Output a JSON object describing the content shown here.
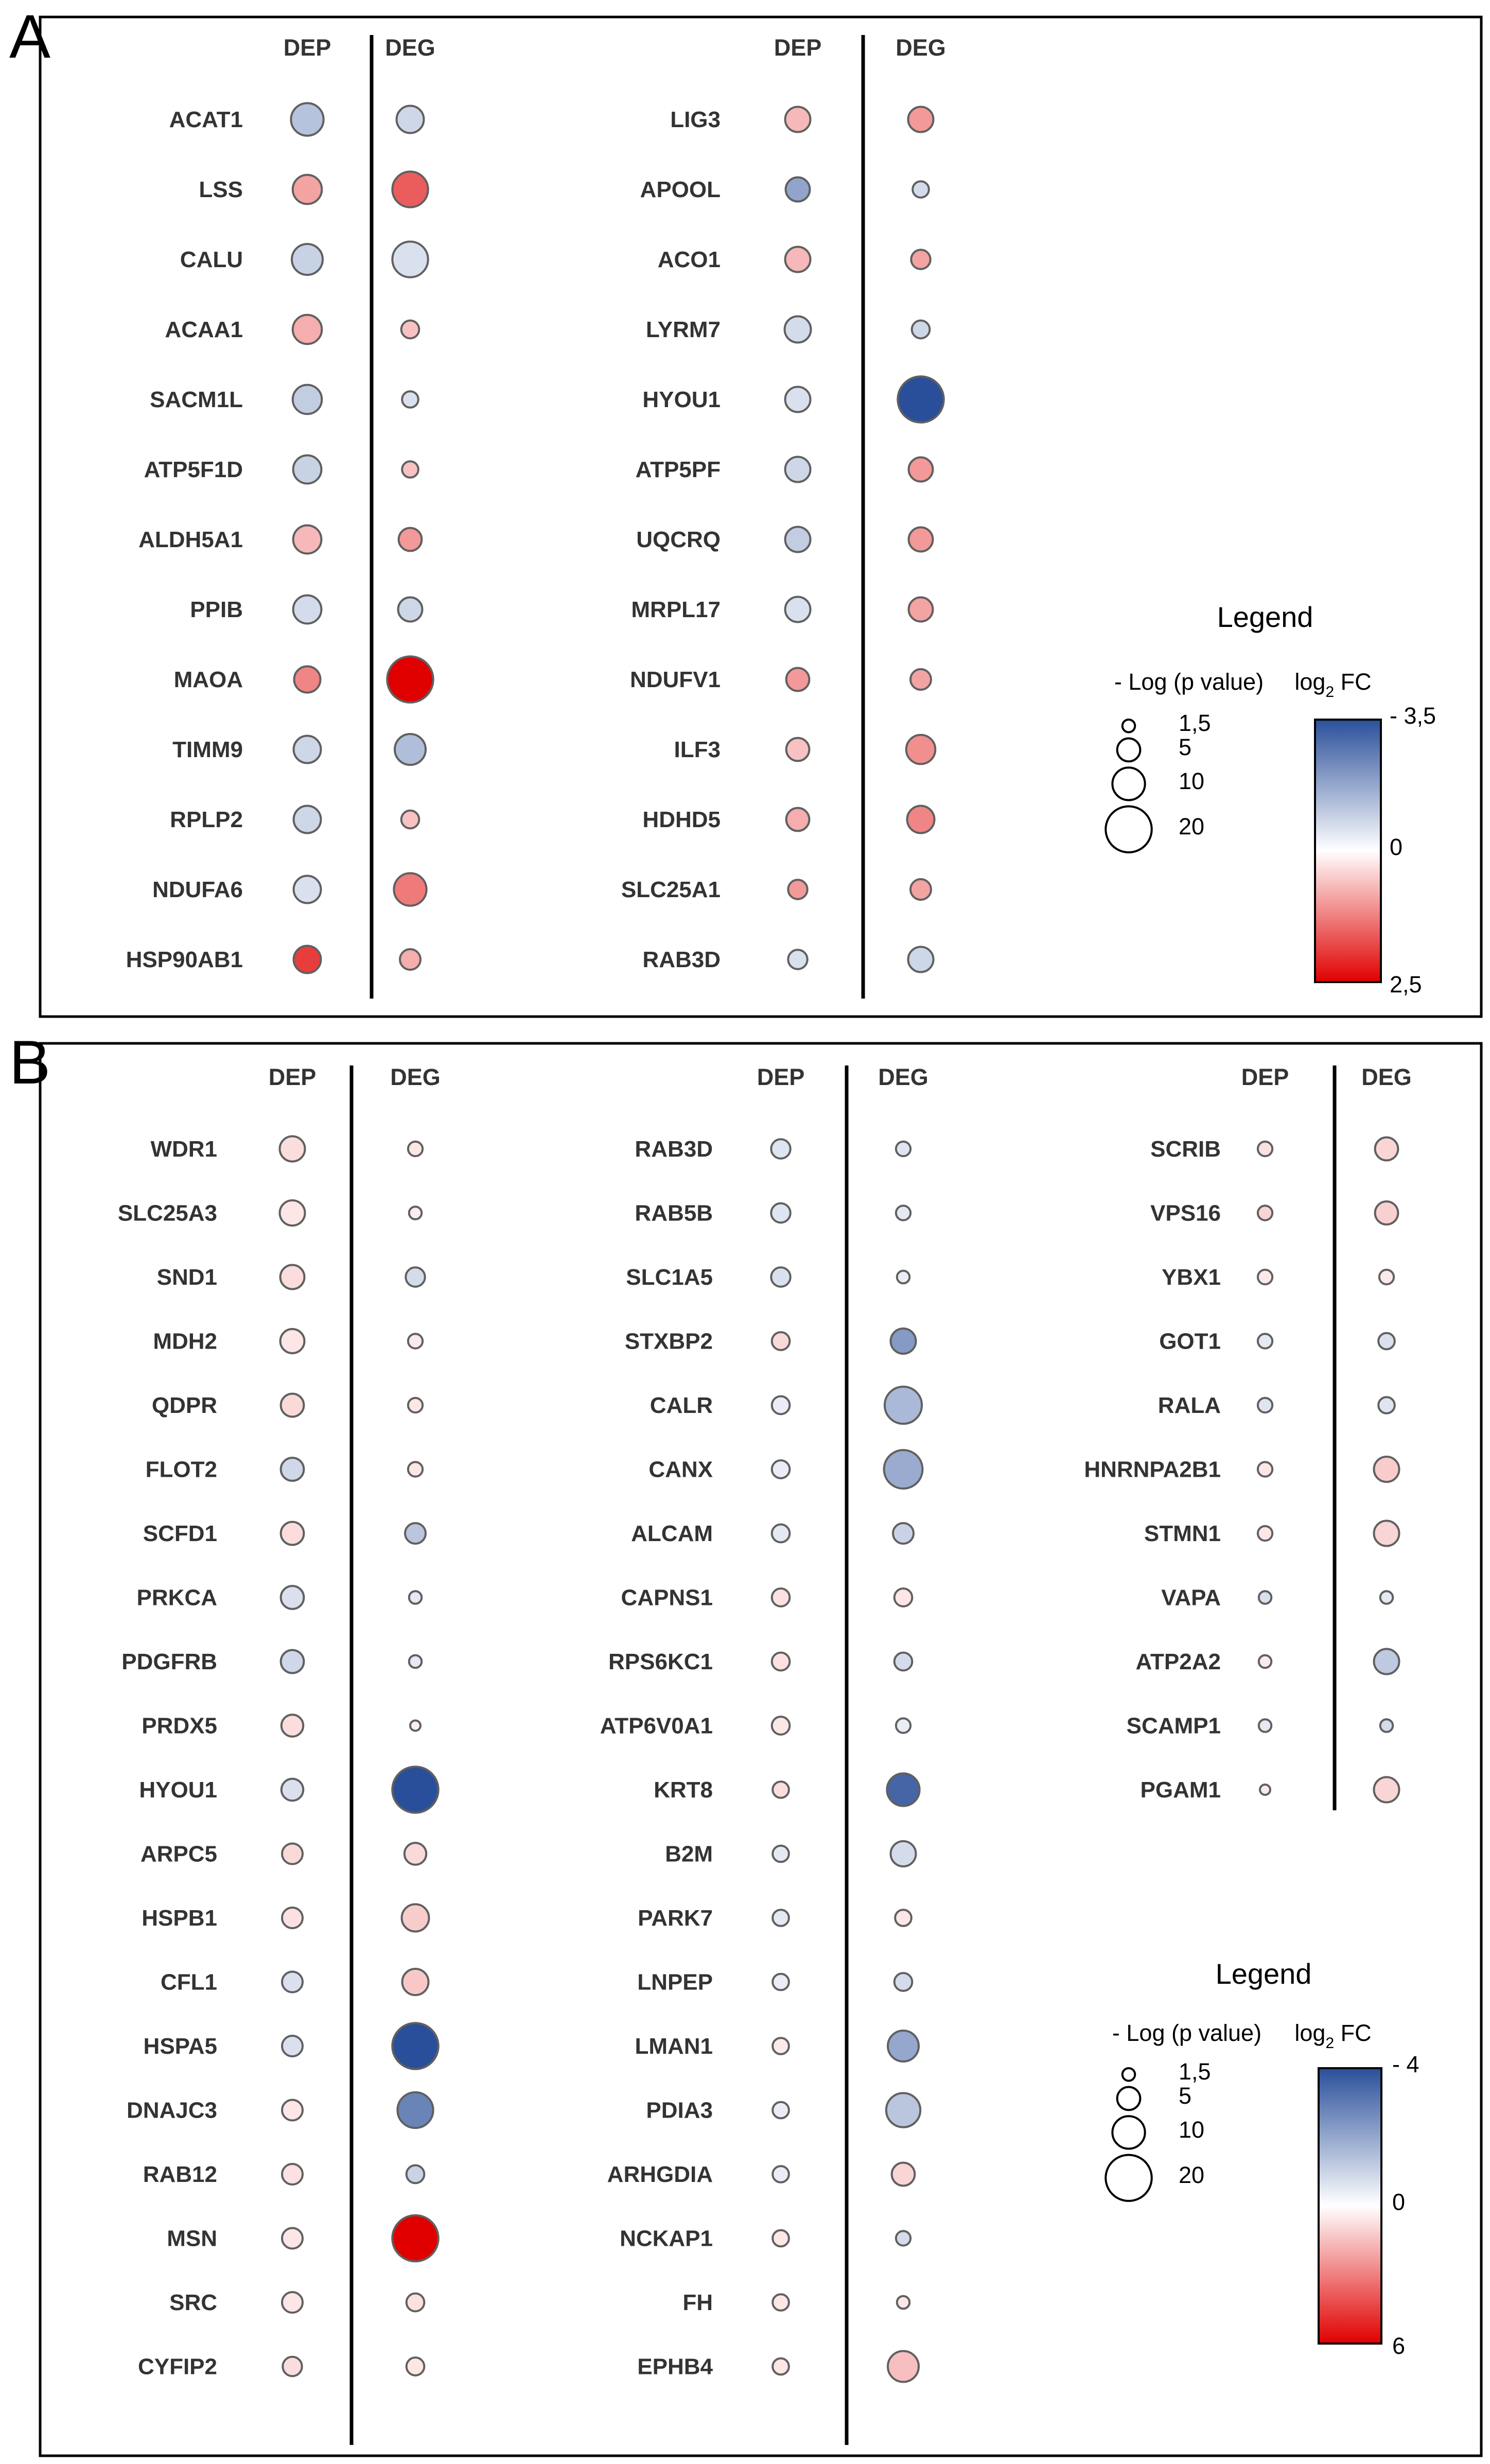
{
  "panel_letters": [
    "A",
    "B"
  ],
  "colors": {
    "high": "#2a4f9a",
    "mid": "#ffffff",
    "low": "#e00000",
    "stroke": "#606060",
    "frame": "#000000"
  },
  "chart_data": [
    {
      "panel": "A",
      "type": "bubble-matrix",
      "column_headers": [
        "DEP",
        "DEG"
      ],
      "note": "values: [DEP log2FC, DEP -log(p), DEG log2FC, DEG -log(p)] estimated from bubble color and size",
      "groups": [
        {
          "genes": [
            {
              "name": "ACAT1",
              "values": [
                -1.2,
                10,
                -0.8,
                7
              ]
            },
            {
              "name": "LSS",
              "values": [
                0.9,
                8,
                1.6,
                12
              ]
            },
            {
              "name": "CALU",
              "values": [
                -0.9,
                9,
                -0.6,
                12
              ]
            },
            {
              "name": "ACAA1",
              "values": [
                0.8,
                8,
                0.6,
                3
              ]
            },
            {
              "name": "SACM1L",
              "values": [
                -1.0,
                8,
                -0.6,
                2.5
              ]
            },
            {
              "name": "ATP5F1D",
              "values": [
                -0.9,
                7.5,
                0.6,
                2.5
              ]
            },
            {
              "name": "ALDH5A1",
              "values": [
                0.7,
                7.5,
                1.0,
                5
              ]
            },
            {
              "name": "PPIB",
              "values": [
                -0.7,
                7.5,
                -0.8,
                5.5
              ]
            },
            {
              "name": "MAOA",
              "values": [
                1.2,
                6.5,
                2.5,
                20
              ]
            },
            {
              "name": "TIMM9",
              "values": [
                -0.8,
                7,
                -1.3,
                9
              ]
            },
            {
              "name": "RPLP2",
              "values": [
                -0.8,
                7,
                0.6,
                3
              ]
            },
            {
              "name": "NDUFA6",
              "values": [
                -0.6,
                7,
                1.3,
                10
              ]
            },
            {
              "name": "HSP90AB1",
              "values": [
                1.9,
                7,
                0.8,
                4
              ]
            }
          ]
        },
        {
          "genes": [
            {
              "name": "LIG3",
              "values": [
                0.7,
                6,
                1.0,
                6
              ]
            },
            {
              "name": "APOOL",
              "values": [
                -1.8,
                5.5,
                -0.7,
                2.5
              ]
            },
            {
              "name": "ACO1",
              "values": [
                0.7,
                6,
                0.9,
                3.5
              ]
            },
            {
              "name": "LYRM7",
              "values": [
                -0.7,
                6.5,
                -0.8,
                3
              ]
            },
            {
              "name": "HYOU1",
              "values": [
                -0.6,
                6,
                -3.5,
                20
              ]
            },
            {
              "name": "ATP5PF",
              "values": [
                -0.8,
                6,
                1.0,
                5.5
              ]
            },
            {
              "name": "UQCRQ",
              "values": [
                -1.0,
                6,
                1.0,
                5.5
              ]
            },
            {
              "name": "MRPL17",
              "values": [
                -0.6,
                6,
                0.9,
                5.5
              ]
            },
            {
              "name": "NDUFV1",
              "values": [
                1.0,
                5,
                0.9,
                4
              ]
            },
            {
              "name": "ILF3",
              "values": [
                0.6,
                5,
                1.1,
                8
              ]
            },
            {
              "name": "HDHD5",
              "values": [
                0.8,
                5,
                1.2,
                7
              ]
            },
            {
              "name": "SLC25A1",
              "values": [
                1.0,
                3.5,
                0.9,
                4
              ]
            },
            {
              "name": "RAB3D",
              "values": [
                -0.6,
                3.5,
                -0.8,
                6
              ]
            }
          ]
        }
      ],
      "legend": {
        "title": "Legend",
        "size_title": "- Log (p value)",
        "size_values": [
          1.5,
          5,
          10,
          20
        ],
        "size_labels": [
          "1,5",
          "5",
          "10",
          "20"
        ],
        "color_title_main": "log",
        "color_title_sub": "2",
        "color_title_end": " FC",
        "color_labels": [
          "- 3,5",
          "0",
          "2,5"
        ],
        "color_range": [
          -3.5,
          2.5
        ]
      }
    },
    {
      "panel": "B",
      "type": "bubble-matrix",
      "column_headers": [
        "DEP",
        "DEG"
      ],
      "note": "values: [DEP log2FC, DEP -log(p), DEG log2FC, DEG -log(p)] estimated from bubble color and size",
      "groups": [
        {
          "genes": [
            {
              "name": "WDR1",
              "values": [
                0.8,
                6,
                0.6,
                2
              ]
            },
            {
              "name": "SLC25A3",
              "values": [
                0.6,
                6,
                0.4,
                1.5
              ]
            },
            {
              "name": "SND1",
              "values": [
                0.8,
                5.5,
                -0.8,
                3.5
              ]
            },
            {
              "name": "MDH2",
              "values": [
                0.6,
                5.5,
                0.5,
                2
              ]
            },
            {
              "name": "QDPR",
              "values": [
                0.9,
                5,
                0.6,
                2
              ]
            },
            {
              "name": "FLOT2",
              "values": [
                -0.9,
                5,
                0.6,
                2
              ]
            },
            {
              "name": "SCFD1",
              "values": [
                0.8,
                5,
                -1.3,
                4
              ]
            },
            {
              "name": "PRKCA",
              "values": [
                -0.7,
                5,
                -0.5,
                1.5
              ]
            },
            {
              "name": "PDGFRB",
              "values": [
                -0.9,
                5,
                -0.5,
                1.5
              ]
            },
            {
              "name": "PRDX5",
              "values": [
                0.8,
                4.5,
                0.4,
                1
              ]
            },
            {
              "name": "HYOU1",
              "values": [
                -0.7,
                4.5,
                -4.0,
                20
              ]
            },
            {
              "name": "ARPC5",
              "values": [
                0.9,
                4,
                0.9,
                4.5
              ]
            },
            {
              "name": "HSPB1",
              "values": [
                0.7,
                4,
                1.2,
                7
              ]
            },
            {
              "name": "CFL1",
              "values": [
                -0.7,
                4,
                1.3,
                6.5
              ]
            },
            {
              "name": "HSPA5",
              "values": [
                -0.7,
                4,
                -4.0,
                20
              ]
            },
            {
              "name": "DNAJC3",
              "values": [
                0.6,
                4,
                -2.8,
                12
              ]
            },
            {
              "name": "RAB12",
              "values": [
                0.7,
                4,
                -1.0,
                3
              ]
            },
            {
              "name": "MSN",
              "values": [
                0.6,
                4,
                6.0,
                20
              ]
            },
            {
              "name": "SRC",
              "values": [
                0.6,
                4,
                0.7,
                3
              ]
            },
            {
              "name": "CYFIP2",
              "values": [
                0.8,
                3.5,
                0.6,
                3
              ]
            }
          ]
        },
        {
          "genes": [
            {
              "name": "RAB3D",
              "values": [
                -0.6,
                3.5,
                -0.6,
                2
              ]
            },
            {
              "name": "RAB5B",
              "values": [
                -0.6,
                3.5,
                -0.5,
                2
              ]
            },
            {
              "name": "SLC1A5",
              "values": [
                -0.7,
                3.5,
                -0.4,
                1.5
              ]
            },
            {
              "name": "STXBP2",
              "values": [
                0.9,
                3,
                -2.3,
                6
              ]
            },
            {
              "name": "CALR",
              "values": [
                -0.4,
                3,
                -1.6,
                13
              ]
            },
            {
              "name": "CANX",
              "values": [
                -0.4,
                3,
                -1.9,
                14
              ]
            },
            {
              "name": "ALCAM",
              "values": [
                -0.5,
                3,
                -1.0,
                4
              ]
            },
            {
              "name": "CAPNS1",
              "values": [
                0.7,
                3,
                0.6,
                3
              ]
            },
            {
              "name": "RPS6KC1",
              "values": [
                0.7,
                3,
                -0.8,
                3
              ]
            },
            {
              "name": "ATP6V0A1",
              "values": [
                0.6,
                3,
                -0.4,
                2
              ]
            },
            {
              "name": "KRT8",
              "values": [
                0.8,
                2.5,
                -3.5,
                10
              ]
            },
            {
              "name": "B2M",
              "values": [
                -0.5,
                2.5,
                -0.8,
                6
              ]
            },
            {
              "name": "PARK7",
              "values": [
                -0.5,
                2.5,
                0.6,
                2.5
              ]
            },
            {
              "name": "LNPEP",
              "values": [
                -0.4,
                2.5,
                -0.8,
                3
              ]
            },
            {
              "name": "LMAN1",
              "values": [
                0.5,
                2.5,
                -2.0,
                9
              ]
            },
            {
              "name": "PDIA3",
              "values": [
                -0.4,
                2.5,
                -1.3,
                11
              ]
            },
            {
              "name": "ARHGDIA",
              "values": [
                -0.4,
                2.5,
                1.0,
                5
              ]
            },
            {
              "name": "NCKAP1",
              "values": [
                0.6,
                2.5,
                -0.8,
                2
              ]
            },
            {
              "name": "FH",
              "values": [
                0.6,
                2.5,
                0.6,
                1.5
              ]
            },
            {
              "name": "EPHB4",
              "values": [
                0.6,
                2.5,
                1.5,
                9
              ]
            }
          ]
        },
        {
          "genes": [
            {
              "name": "SCRIB",
              "values": [
                0.7,
                2,
                1.0,
                5
              ]
            },
            {
              "name": "VPS16",
              "values": [
                1.0,
                2,
                1.1,
                5
              ]
            },
            {
              "name": "YBX1",
              "values": [
                0.5,
                2,
                0.5,
                2
              ]
            },
            {
              "name": "GOT1",
              "values": [
                -0.5,
                2,
                -0.7,
                2.5
              ]
            },
            {
              "name": "RALA",
              "values": [
                -0.6,
                2,
                -0.6,
                2.5
              ]
            },
            {
              "name": "HNRNPA2B1",
              "values": [
                0.6,
                2,
                1.2,
                6
              ]
            },
            {
              "name": "STMN1",
              "values": [
                0.6,
                2,
                1.0,
                6
              ]
            },
            {
              "name": "VAPA",
              "values": [
                -0.7,
                1.5,
                -0.5,
                1.5
              ]
            },
            {
              "name": "ATP2A2",
              "values": [
                0.5,
                1.5,
                -1.2,
                6
              ]
            },
            {
              "name": "SCAMP1",
              "values": [
                -0.5,
                1.5,
                -0.8,
                1.5
              ]
            },
            {
              "name": "PGAM1",
              "values": [
                0.5,
                1,
                1.0,
                6
              ]
            }
          ]
        }
      ],
      "legend": {
        "title": "Legend",
        "size_title": "- Log (p value)",
        "size_values": [
          1.5,
          5,
          10,
          20
        ],
        "size_labels": [
          "1,5",
          "5",
          "10",
          "20"
        ],
        "color_title_main": "log",
        "color_title_sub": "2",
        "color_title_end": " FC",
        "color_labels": [
          "- 4",
          "0",
          "6"
        ],
        "color_range": [
          -4,
          6
        ]
      }
    }
  ]
}
